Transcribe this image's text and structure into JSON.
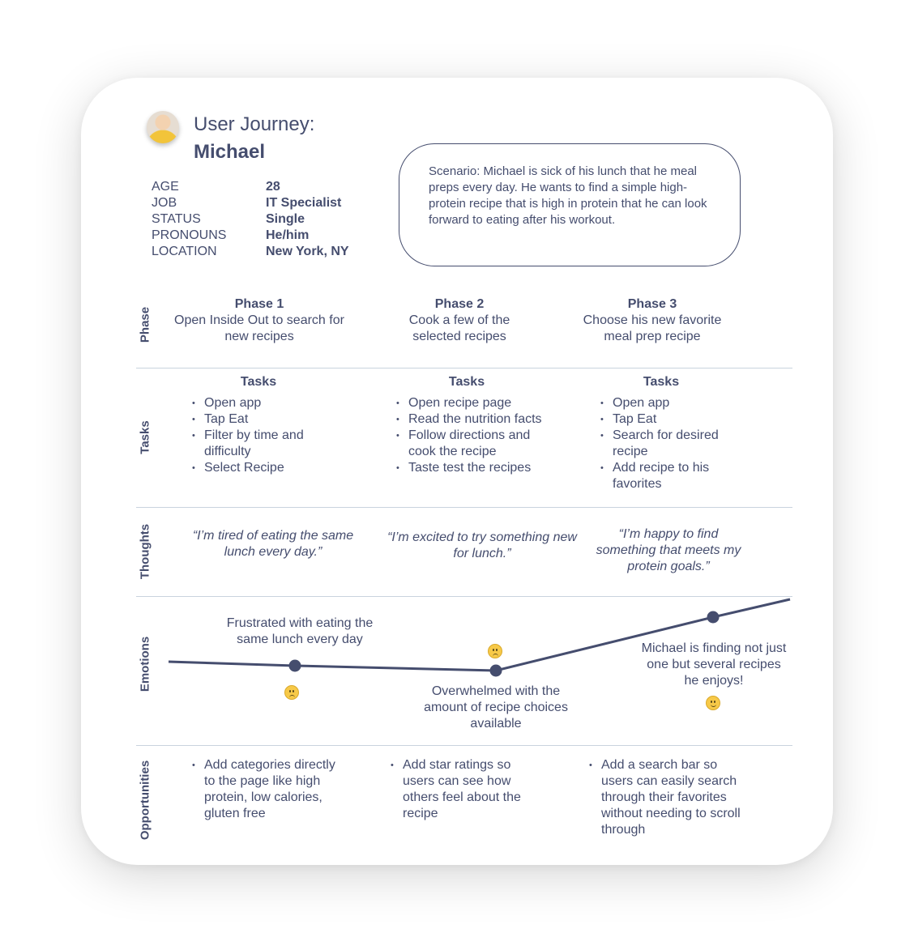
{
  "header": {
    "title_line1": "User Journey:",
    "title_line2": "Michael"
  },
  "profile": {
    "rows": [
      {
        "label": "AGE",
        "value": "28"
      },
      {
        "label": "JOB",
        "value": "IT Specialist"
      },
      {
        "label": "STATUS",
        "value": "Single"
      },
      {
        "label": "PRONOUNS",
        "value": "He/him"
      },
      {
        "label": "LOCATION",
        "value": "New York, NY"
      }
    ]
  },
  "scenario": "Scenario: Michael is sick of his lunch that he meal preps every day. He wants to find a simple high-protein recipe that is high in protein that he can look forward to eating after his workout.",
  "row_labels": {
    "phase": "Phase",
    "tasks": "Tasks",
    "thoughts": "Thoughts",
    "emotions": "Emotions",
    "opportunities": "Opportunities"
  },
  "phases": [
    {
      "title": "Phase 1",
      "desc": "Open Inside Out to search for new recipes"
    },
    {
      "title": "Phase 2",
      "desc": "Cook a few of the selected recipes"
    },
    {
      "title": "Phase 3",
      "desc": "Choose his new favorite meal prep recipe"
    }
  ],
  "tasks": [
    {
      "heading": "Tasks",
      "items": [
        "Open app",
        "Tap Eat",
        "Filter by time and difficulty",
        "Select Recipe"
      ]
    },
    {
      "heading": "Tasks",
      "items": [
        "Open recipe page",
        "Read the nutrition facts",
        "Follow directions and cook the recipe",
        "Taste test the recipes"
      ]
    },
    {
      "heading": "Tasks",
      "items": [
        "Open app",
        "Tap Eat",
        "Search for desired recipe",
        "Add recipe to his favorites"
      ]
    }
  ],
  "thoughts": [
    "“I’m tired of eating the same lunch every day.”",
    "“I’m excited to try something new for lunch.”",
    "“I’m happy to find something that meets my protein goals.”"
  ],
  "emotions": [
    {
      "text": "Frustrated with eating the same lunch every day",
      "icon": "worried-face-icon"
    },
    {
      "text": "Overwhelmed with the amount of recipe choices available",
      "icon": "worried-face-icon"
    },
    {
      "text": "Michael is finding not just one but several recipes he enjoys!",
      "icon": "smiling-face-icon"
    }
  ],
  "opportunities": [
    [
      "Add categories directly to the page like high protein, low calories, gluten free"
    ],
    [
      "Add star ratings so users can see how others feel about the recipe"
    ],
    [
      "Add a search bar so users can easily search through their favorites without needing to scroll through"
    ]
  ],
  "colors": {
    "text": "#454d6e",
    "line": "#454d6e",
    "divider": "#c9d3de",
    "emoji": "#f7c948"
  }
}
